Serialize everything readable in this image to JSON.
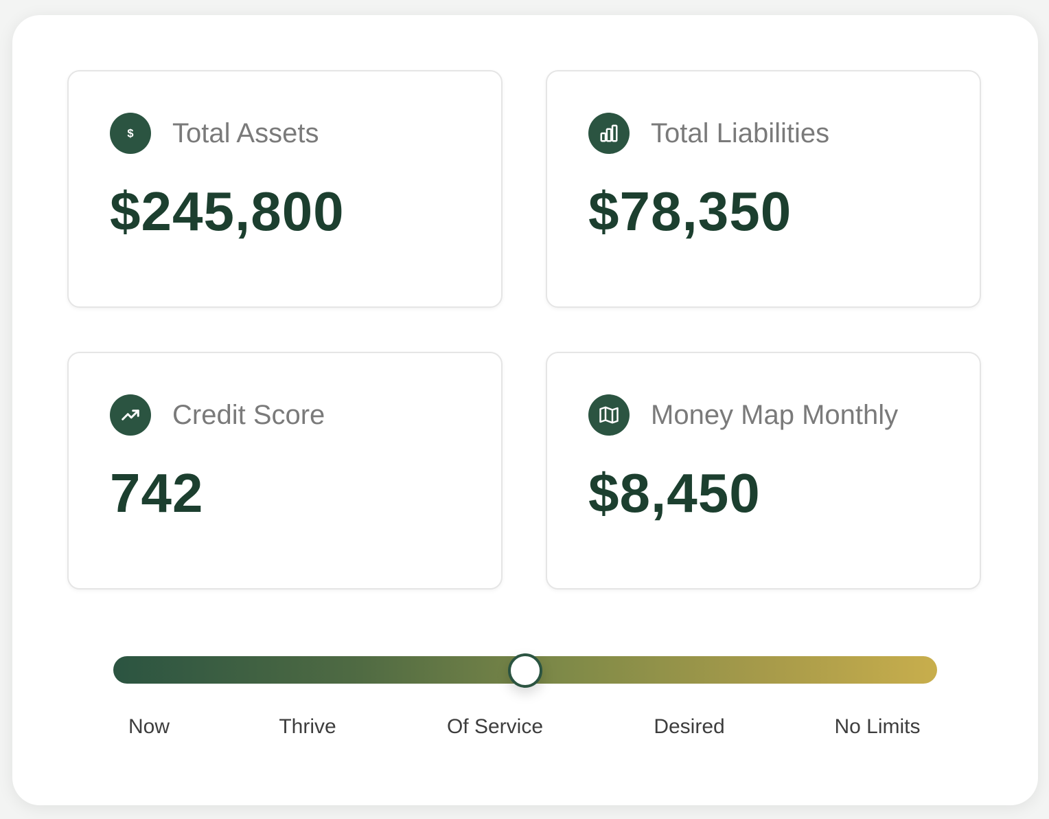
{
  "cards": [
    {
      "label": "Total Assets",
      "value": "$245,800",
      "icon": "dollar-icon"
    },
    {
      "label": "Total Liabilities",
      "value": "$78,350",
      "icon": "bar-chart-icon"
    },
    {
      "label": "Credit Score",
      "value": "742",
      "icon": "trending-up-icon"
    },
    {
      "label": "Money Map Monthly",
      "value": "$8,450",
      "icon": "map-icon"
    }
  ],
  "slider": {
    "stages": [
      "Now",
      "Thrive",
      "Of Service",
      "Desired",
      "No Limits"
    ],
    "selected": "Of Service",
    "position": 0.5,
    "colors": {
      "start": "#2b5441",
      "end": "#c8ae4c"
    }
  },
  "colors": {
    "accent": "#2b5441",
    "value_text": "#1c3f2f",
    "label_text": "#7a7a7a"
  }
}
